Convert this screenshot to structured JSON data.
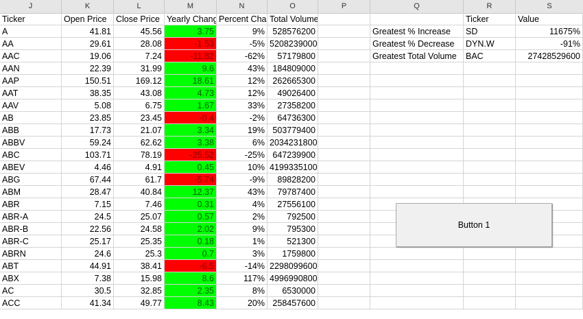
{
  "columns": [
    "J",
    "K",
    "L",
    "M",
    "N",
    "O",
    "P",
    "Q",
    "R",
    "S"
  ],
  "headers": {
    "ticker": "Ticker",
    "open": "Open Price",
    "close": "Close Price",
    "yearly": "Yearly Chang",
    "percent": "Percent Char",
    "volume": "Total Volume"
  },
  "rows": [
    {
      "ticker": "A",
      "open": "41.81",
      "close": "45.56",
      "yearly": "3.75",
      "positive": true,
      "percent": "9%",
      "volume": "528576200"
    },
    {
      "ticker": "AA",
      "open": "29.61",
      "close": "28.08",
      "yearly": "-1.53",
      "positive": false,
      "percent": "-5%",
      "volume": "5208239000"
    },
    {
      "ticker": "AAC",
      "open": "19.06",
      "close": "7.24",
      "yearly": "-11.82",
      "positive": false,
      "percent": "-62%",
      "volume": "57179800"
    },
    {
      "ticker": "AAN",
      "open": "22.39",
      "close": "31.99",
      "yearly": "9.6",
      "positive": true,
      "percent": "43%",
      "volume": "184809000"
    },
    {
      "ticker": "AAP",
      "open": "150.51",
      "close": "169.12",
      "yearly": "18.61",
      "positive": true,
      "percent": "12%",
      "volume": "262665300"
    },
    {
      "ticker": "AAT",
      "open": "38.35",
      "close": "43.08",
      "yearly": "4.73",
      "positive": true,
      "percent": "12%",
      "volume": "49026400"
    },
    {
      "ticker": "AAV",
      "open": "5.08",
      "close": "6.75",
      "yearly": "1.67",
      "positive": true,
      "percent": "33%",
      "volume": "27358200"
    },
    {
      "ticker": "AB",
      "open": "23.85",
      "close": "23.45",
      "yearly": "-0.4",
      "positive": false,
      "percent": "-2%",
      "volume": "64736300"
    },
    {
      "ticker": "ABB",
      "open": "17.73",
      "close": "21.07",
      "yearly": "3.34",
      "positive": true,
      "percent": "19%",
      "volume": "503779400"
    },
    {
      "ticker": "ABBV",
      "open": "59.24",
      "close": "62.62",
      "yearly": "3.38",
      "positive": true,
      "percent": "6%",
      "volume": "2034231800"
    },
    {
      "ticker": "ABC",
      "open": "103.71",
      "close": "78.19",
      "yearly": "-25.52",
      "positive": false,
      "percent": "-25%",
      "volume": "647239900"
    },
    {
      "ticker": "ABEV",
      "open": "4.46",
      "close": "4.91",
      "yearly": "0.45",
      "positive": true,
      "percent": "10%",
      "volume": "4199335100"
    },
    {
      "ticker": "ABG",
      "open": "67.44",
      "close": "61.7",
      "yearly": "-5.74",
      "positive": false,
      "percent": "-9%",
      "volume": "89828200"
    },
    {
      "ticker": "ABM",
      "open": "28.47",
      "close": "40.84",
      "yearly": "12.37",
      "positive": true,
      "percent": "43%",
      "volume": "79787400"
    },
    {
      "ticker": "ABR",
      "open": "7.15",
      "close": "7.46",
      "yearly": "0.31",
      "positive": true,
      "percent": "4%",
      "volume": "27556100"
    },
    {
      "ticker": "ABR-A",
      "open": "24.5",
      "close": "25.07",
      "yearly": "0.57",
      "positive": true,
      "percent": "2%",
      "volume": "792500"
    },
    {
      "ticker": "ABR-B",
      "open": "22.56",
      "close": "24.58",
      "yearly": "2.02",
      "positive": true,
      "percent": "9%",
      "volume": "795300"
    },
    {
      "ticker": "ABR-C",
      "open": "25.17",
      "close": "25.35",
      "yearly": "0.18",
      "positive": true,
      "percent": "1%",
      "volume": "521300"
    },
    {
      "ticker": "ABRN",
      "open": "24.6",
      "close": "25.3",
      "yearly": "0.7",
      "positive": true,
      "percent": "3%",
      "volume": "1759800"
    },
    {
      "ticker": "ABT",
      "open": "44.91",
      "close": "38.41",
      "yearly": "-6.5",
      "positive": false,
      "percent": "-14%",
      "volume": "2298099600"
    },
    {
      "ticker": "ABX",
      "open": "7.38",
      "close": "15.98",
      "yearly": "8.6",
      "positive": true,
      "percent": "117%",
      "volume": "4996990800"
    },
    {
      "ticker": "AC",
      "open": "30.5",
      "close": "32.85",
      "yearly": "2.35",
      "positive": true,
      "percent": "8%",
      "volume": "6530000"
    },
    {
      "ticker": "ACC",
      "open": "41.34",
      "close": "49.77",
      "yearly": "8.43",
      "positive": true,
      "percent": "20%",
      "volume": "258457600"
    }
  ],
  "summary": {
    "ticker_header": "Ticker",
    "value_header": "Value",
    "items": [
      {
        "label": "Greatest % Increase",
        "ticker": "SD",
        "value": "11675%"
      },
      {
        "label": "Greatest % Decrease",
        "ticker": "DYN.W",
        "value": "-91%"
      },
      {
        "label": "Greatest Total Volume",
        "ticker": "BAC",
        "value": "27428529600"
      }
    ]
  },
  "button": {
    "label": "Button 1"
  },
  "colors": {
    "positive": "#00ff00",
    "negative": "#ff0000",
    "header_bg": "#e6e6e6"
  }
}
